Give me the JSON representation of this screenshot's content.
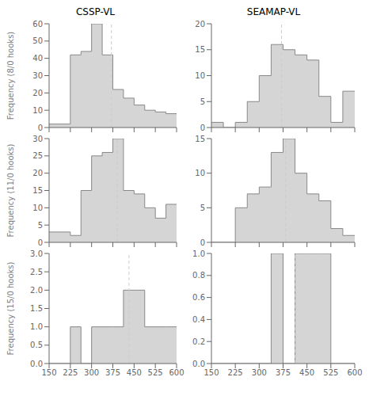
{
  "chart_data": [
    {
      "type": "histogram",
      "title": "CSSP-VL",
      "y_label": "Frequency (8/0 hooks)",
      "bins": [
        150,
        225,
        262.5,
        300,
        337.5,
        375,
        412.5,
        450,
        487.5,
        525,
        562.5,
        600
      ],
      "values": [
        2,
        42,
        44,
        60,
        42,
        22,
        17,
        13,
        10,
        9,
        8
      ],
      "mean_line": 370,
      "xlim": [
        150,
        600
      ],
      "xticks": [
        150,
        225,
        300,
        375,
        450,
        525,
        600
      ],
      "ylim": [
        0,
        60
      ],
      "yticks": [
        0,
        10,
        20,
        30,
        40,
        50,
        60
      ],
      "color": "#888888",
      "tick_labels": "y"
    },
    {
      "type": "histogram",
      "title": "SEAMAP-VL",
      "bins": [
        150,
        187.5,
        225,
        262.5,
        300,
        337.5,
        375,
        412.5,
        450,
        487.5,
        525,
        562.5,
        600
      ],
      "values": [
        1,
        0,
        1,
        5,
        10,
        16,
        15,
        14,
        13,
        6,
        1,
        7
      ],
      "mean_line": 370,
      "xlim": [
        150,
        600
      ],
      "xticks": [
        150,
        225,
        300,
        375,
        450,
        525,
        600
      ],
      "ylim": [
        0,
        20
      ],
      "yticks": [
        0,
        5,
        10,
        15,
        20
      ],
      "color": "#888888",
      "tick_labels": "y"
    },
    {
      "type": "histogram",
      "y_label": "Frequency (11/0 hooks)",
      "bins": [
        150,
        225,
        262.5,
        300,
        337.5,
        375,
        412.5,
        450,
        487.5,
        525,
        562.5,
        600
      ],
      "values": [
        3,
        2,
        15,
        25,
        26,
        30,
        15,
        14,
        10,
        7,
        11
      ],
      "mean_line": 390,
      "xlim": [
        150,
        600
      ],
      "xticks": [
        150,
        225,
        300,
        375,
        450,
        525,
        600
      ],
      "ylim": [
        0,
        30
      ],
      "yticks": [
        0,
        5,
        10,
        15,
        20,
        25,
        30
      ],
      "color": "#888888",
      "tick_labels": "y"
    },
    {
      "type": "histogram",
      "bins": [
        150,
        225,
        262.5,
        300,
        337.5,
        375,
        412.5,
        450,
        487.5,
        525,
        562.5,
        600
      ],
      "values": [
        0,
        5,
        7,
        8,
        13,
        15,
        10,
        7,
        6,
        2,
        1
      ],
      "mean_line": 383,
      "xlim": [
        150,
        600
      ],
      "xticks": [
        150,
        225,
        300,
        375,
        450,
        525,
        600
      ],
      "ylim": [
        0,
        15
      ],
      "yticks": [
        0,
        5,
        10,
        15
      ],
      "color": "#888888",
      "tick_labels": "y"
    },
    {
      "type": "histogram",
      "y_label": "Frequency (15/0 hooks)",
      "bins": [
        150,
        225,
        262.5,
        300,
        337.5,
        375,
        412.5,
        450,
        487.5,
        525,
        562.5,
        600
      ],
      "values": [
        0,
        1,
        0,
        1,
        1,
        1,
        2,
        2,
        1,
        1,
        1
      ],
      "mean_line": 432,
      "xlim": [
        150,
        600
      ],
      "xticks": [
        150,
        225,
        300,
        375,
        450,
        525,
        600
      ],
      "ylim": [
        0,
        3.0
      ],
      "yticks": [
        {
          "value": 0,
          "label": "0.0"
        },
        0.5,
        {
          "value": 1,
          "label": "1.0"
        },
        1.5,
        {
          "value": 2,
          "label": "2.0"
        },
        2.5,
        {
          "value": 3,
          "label": "3.0"
        }
      ],
      "color": "#888888"
    },
    {
      "type": "histogram",
      "bins": [
        150,
        225,
        300,
        337.5,
        375,
        412.5,
        450,
        487.5,
        525,
        562.5,
        600
      ],
      "values": [
        0,
        0,
        0,
        1,
        0,
        1,
        1,
        1,
        0,
        0
      ],
      "mean_line": 413,
      "xlim": [
        150,
        600
      ],
      "xticks": [
        150,
        225,
        300,
        375,
        450,
        525,
        600
      ],
      "ylim": [
        0,
        1.0
      ],
      "yticks": [
        {
          "value": 0,
          "label": "0.0"
        },
        0.2,
        0.4,
        0.6,
        0.8,
        {
          "value": 1,
          "label": "1.0"
        }
      ],
      "color": "#888888"
    }
  ]
}
